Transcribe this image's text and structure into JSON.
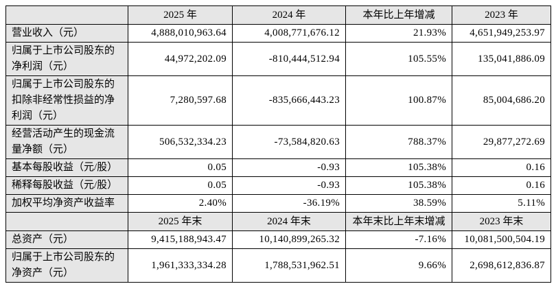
{
  "table": {
    "section1": {
      "corner": "",
      "headers": [
        "2025 年",
        "2024 年",
        "本年比上年增减",
        "2023 年"
      ],
      "rows": [
        {
          "label": "营业收入（元）",
          "v": [
            "4,888,010,963.64",
            "4,008,771,676.12",
            "21.93%",
            "4,651,949,253.97"
          ]
        },
        {
          "label": "归属于上市公司股东的净利润（元）",
          "v": [
            "44,972,202.09",
            "-810,444,512.94",
            "105.55%",
            "135,041,886.09"
          ]
        },
        {
          "label": "归属于上市公司股东的扣除非经常性损益的净利润（元）",
          "v": [
            "7,280,597.68",
            "-835,666,443.23",
            "100.87%",
            "85,004,686.20"
          ]
        },
        {
          "label": "经营活动产生的现金流量净额（元）",
          "v": [
            "506,532,334.23",
            "-73,584,820.63",
            "788.37%",
            "29,877,272.69"
          ]
        },
        {
          "label": "基本每股收益（元/股）",
          "v": [
            "0.05",
            "-0.93",
            "105.38%",
            "0.16"
          ]
        },
        {
          "label": "稀释每股收益（元/股）",
          "v": [
            "0.05",
            "-0.93",
            "105.38%",
            "0.16"
          ]
        },
        {
          "label": "加权平均净资产收益率",
          "v": [
            "2.40%",
            "-36.19%",
            "38.59%",
            "5.11%"
          ]
        }
      ]
    },
    "section2": {
      "corner": "",
      "headers": [
        "2025 年末",
        "2024 年末",
        "本年末比上年末增减",
        "2023 年末"
      ],
      "rows": [
        {
          "label": "总资产（元）",
          "v": [
            "9,415,188,943.47",
            "10,140,899,265.32",
            "-7.16%",
            "10,081,500,504.19"
          ]
        },
        {
          "label": "归属于上市公司股东的净资产（元）",
          "v": [
            "1,961,333,334.28",
            "1,788,531,962.51",
            "9.66%",
            "2,698,612,836.87"
          ]
        }
      ]
    },
    "colors": {
      "header_bg": "#e6e6e6",
      "label_bg": "#e6e6e6",
      "border": "#000000",
      "cell_bg": "#ffffff"
    }
  }
}
